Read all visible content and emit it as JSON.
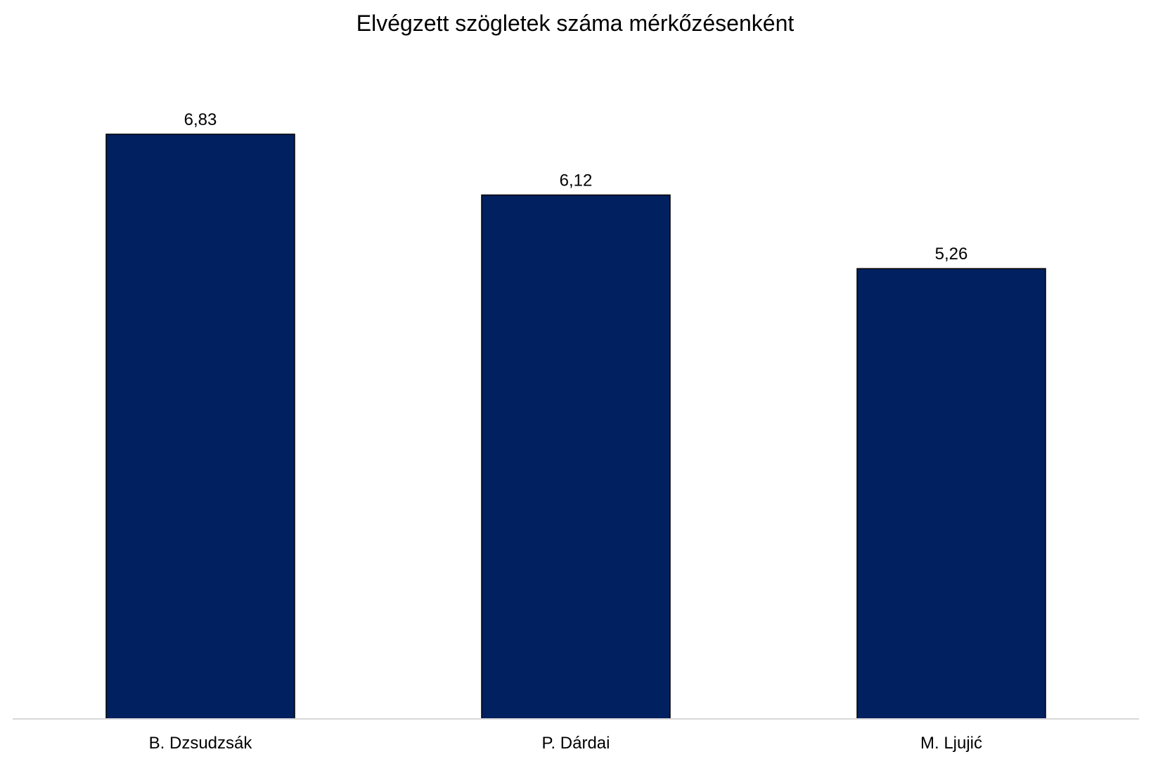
{
  "chart_data": {
    "type": "bar",
    "title": "Elvégzett szögletek száma mérkőzésenként",
    "categories": [
      "B. Dzsudzsák",
      "P. Dárdai",
      "M. Ljujić"
    ],
    "values": [
      6.83,
      6.12,
      5.26
    ],
    "data_labels": [
      "6,83",
      "6,12",
      "5,26"
    ],
    "ylim": [
      0,
      7.7
    ],
    "grid": false,
    "legend": "none",
    "bar_color": "#002060",
    "bar_border_color": "#000000",
    "axis_color": "#d9d9d9"
  }
}
